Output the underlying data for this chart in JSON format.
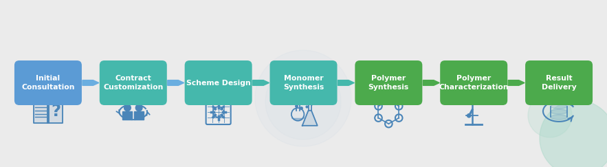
{
  "background_color": "#ebebeb",
  "steps": [
    {
      "label": "Initial\nConsultation",
      "color": "#5b9bd5"
    },
    {
      "label": "Contract\nCustomization",
      "color": "#45b8ac"
    },
    {
      "label": "Scheme Design",
      "color": "#45b8ac"
    },
    {
      "label": "Monomer\nSynthesis",
      "color": "#45b8ac"
    },
    {
      "label": "Polymer\nSynthesis",
      "color": "#4caa4c"
    },
    {
      "label": "Polymer\nCharacterization",
      "color": "#4caa4c"
    },
    {
      "label": "Result\nDelivery",
      "color": "#4caa4c"
    }
  ],
  "arrow_colors": [
    "#6aaee0",
    "#6aaee0",
    "#45b8ac",
    "#45b8ac",
    "#4caa4c",
    "#4caa4c"
  ],
  "text_color": "#ffffff",
  "font_size": 7.8,
  "icon_color": "#4a85b8",
  "bg_dot_color": "#d8d8d8",
  "teal_circle_color": "#a8d8c8"
}
